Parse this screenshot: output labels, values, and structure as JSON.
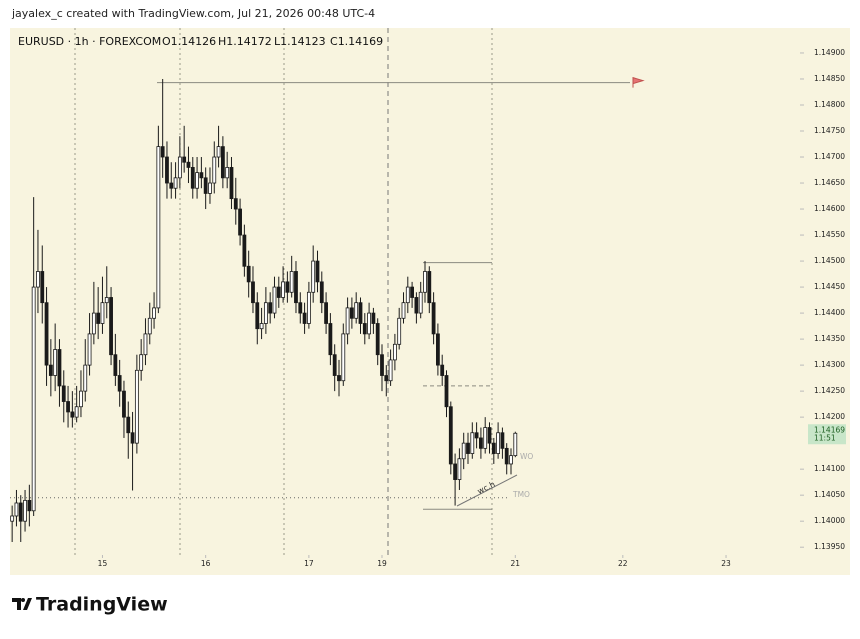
{
  "header": "jayalex_c created with TradingView.com, Jul 21, 2026 00:48 UTC-4",
  "footer": {
    "logo_text": "TradingView"
  },
  "chart_data": {
    "type": "candlestick",
    "symbol": "EURUSD · 1h · FOREXCOM",
    "ohlc_labels": [
      "O",
      "H",
      "L",
      "C"
    ],
    "up_color": "#ffffff",
    "down_color": "#1a1a1a",
    "border_color": "#1a1a1a",
    "xlim": [
      -0.5,
      183.2
    ],
    "xticks": [
      {
        "value": 21,
        "label": "15"
      },
      {
        "value": 45,
        "label": "16"
      },
      {
        "value": 69,
        "label": "17"
      },
      {
        "value": 86,
        "label": "19"
      },
      {
        "value": 117,
        "label": "21"
      },
      {
        "value": 142,
        "label": "22"
      },
      {
        "value": 166,
        "label": "23"
      }
    ],
    "ylim": [
      1.13935,
      1.14948
    ],
    "yticks": [
      {
        "value": 1.149,
        "label": "1.14900"
      },
      {
        "value": 1.1485,
        "label": "1.14850"
      },
      {
        "value": 1.148,
        "label": "1.14800"
      },
      {
        "value": 1.1475,
        "label": "1.14750"
      },
      {
        "value": 1.147,
        "label": "1.14700"
      },
      {
        "value": 1.1465,
        "label": "1.14650"
      },
      {
        "value": 1.146,
        "label": "1.14600"
      },
      {
        "value": 1.1455,
        "label": "1.14550"
      },
      {
        "value": 1.145,
        "label": "1.14500"
      },
      {
        "value": 1.1445,
        "label": "1.14450"
      },
      {
        "value": 1.144,
        "label": "1.14400"
      },
      {
        "value": 1.1435,
        "label": "1.14350"
      },
      {
        "value": 1.143,
        "label": "1.14300"
      },
      {
        "value": 1.1425,
        "label": "1.14250"
      },
      {
        "value": 1.142,
        "label": "1.14200"
      },
      {
        "value": 1.141,
        "label": "1.14100"
      },
      {
        "value": 1.1405,
        "label": "1.14050"
      },
      {
        "value": 1.14,
        "label": "1.14000"
      },
      {
        "value": 1.1395,
        "label": "1.13950"
      }
    ],
    "price_tag_time": "11:51",
    "price_tag_color": "#c8e6c9",
    "hlines": [
      1.14843,
      1.14497,
      1.1426,
      1.14023,
      1.14045
    ],
    "annotations": [
      "wc.h",
      "WO",
      "TMO"
    ],
    "candles": [
      [
        1.14,
        1.1403,
        1.1396,
        1.1401
      ],
      [
        1.1401,
        1.1406,
        1.1399,
        1.14035
      ],
      [
        1.14035,
        1.1405,
        1.1396,
        1.14
      ],
      [
        1.14,
        1.1406,
        1.1398,
        1.1404
      ],
      [
        1.1404,
        1.1407,
        1.1399,
        1.1402
      ],
      [
        1.1402,
        1.14623,
        1.1401,
        1.1445
      ],
      [
        1.1445,
        1.1456,
        1.144,
        1.1448
      ],
      [
        1.1448,
        1.1453,
        1.1438,
        1.1442
      ],
      [
        1.1442,
        1.1445,
        1.1426,
        1.143
      ],
      [
        1.143,
        1.1435,
        1.1424,
        1.1428
      ],
      [
        1.1428,
        1.1438,
        1.1425,
        1.1433
      ],
      [
        1.1433,
        1.1435,
        1.1422,
        1.1426
      ],
      [
        1.1426,
        1.1429,
        1.1419,
        1.1423
      ],
      [
        1.1423,
        1.1426,
        1.1418,
        1.1421
      ],
      [
        1.1421,
        1.1425,
        1.1418,
        1.142
      ],
      [
        1.142,
        1.1426,
        1.1419,
        1.1422
      ],
      [
        1.1422,
        1.1429,
        1.142,
        1.1425
      ],
      [
        1.1425,
        1.1435,
        1.1423,
        1.143
      ],
      [
        1.143,
        1.144,
        1.1428,
        1.1436
      ],
      [
        1.1436,
        1.1446,
        1.1434,
        1.144
      ],
      [
        1.144,
        1.1445,
        1.1435,
        1.1438
      ],
      [
        1.1438,
        1.1447,
        1.1436,
        1.1442
      ],
      [
        1.1442,
        1.1449,
        1.1439,
        1.1443
      ],
      [
        1.1443,
        1.1445,
        1.143,
        1.1432
      ],
      [
        1.1432,
        1.1436,
        1.1426,
        1.1428
      ],
      [
        1.1428,
        1.1431,
        1.1422,
        1.1425
      ],
      [
        1.1425,
        1.1427,
        1.1416,
        1.142
      ],
      [
        1.142,
        1.1423,
        1.1412,
        1.1417
      ],
      [
        1.1417,
        1.1421,
        1.14059,
        1.1415
      ],
      [
        1.1415,
        1.1432,
        1.1413,
        1.1429
      ],
      [
        1.1429,
        1.1435,
        1.1427,
        1.1432
      ],
      [
        1.1432,
        1.1439,
        1.143,
        1.1436
      ],
      [
        1.1436,
        1.1442,
        1.1434,
        1.1439
      ],
      [
        1.1439,
        1.1444,
        1.1437,
        1.1441
      ],
      [
        1.1441,
        1.1476,
        1.144,
        1.1472
      ],
      [
        1.1472,
        1.1485,
        1.1466,
        1.147
      ],
      [
        1.147,
        1.1473,
        1.1462,
        1.1465
      ],
      [
        1.1465,
        1.1469,
        1.1462,
        1.1464
      ],
      [
        1.1464,
        1.1469,
        1.1462,
        1.1466
      ],
      [
        1.1466,
        1.1474,
        1.1464,
        1.147
      ],
      [
        1.147,
        1.1476,
        1.1467,
        1.1469
      ],
      [
        1.1469,
        1.1472,
        1.1465,
        1.1468
      ],
      [
        1.1468,
        1.147,
        1.1462,
        1.1464
      ],
      [
        1.1464,
        1.147,
        1.1462,
        1.1467
      ],
      [
        1.1467,
        1.147,
        1.1464,
        1.1466
      ],
      [
        1.1466,
        1.1468,
        1.146,
        1.1463
      ],
      [
        1.1463,
        1.1468,
        1.1461,
        1.1465
      ],
      [
        1.1465,
        1.1473,
        1.1463,
        1.147
      ],
      [
        1.147,
        1.1476,
        1.1468,
        1.1472
      ],
      [
        1.1472,
        1.1474,
        1.1464,
        1.1466
      ],
      [
        1.1466,
        1.1471,
        1.1464,
        1.1468
      ],
      [
        1.1468,
        1.147,
        1.146,
        1.1462
      ],
      [
        1.1462,
        1.1466,
        1.1457,
        1.146
      ],
      [
        1.146,
        1.1462,
        1.1453,
        1.1455
      ],
      [
        1.1455,
        1.1457,
        1.1447,
        1.1449
      ],
      [
        1.1449,
        1.1452,
        1.1443,
        1.1446
      ],
      [
        1.1446,
        1.1449,
        1.144,
        1.1442
      ],
      [
        1.1442,
        1.1444,
        1.1434,
        1.1437
      ],
      [
        1.1437,
        1.1441,
        1.1435,
        1.1438
      ],
      [
        1.1438,
        1.1445,
        1.1436,
        1.1442
      ],
      [
        1.1442,
        1.1444,
        1.1438,
        1.144
      ],
      [
        1.144,
        1.1447,
        1.1439,
        1.1445
      ],
      [
        1.1445,
        1.1447,
        1.1441,
        1.1443
      ],
      [
        1.1443,
        1.1449,
        1.1442,
        1.1446
      ],
      [
        1.1446,
        1.1448,
        1.1442,
        1.1444
      ],
      [
        1.1444,
        1.1451,
        1.1443,
        1.1448
      ],
      [
        1.1448,
        1.145,
        1.144,
        1.1442
      ],
      [
        1.1442,
        1.1444,
        1.1438,
        1.144
      ],
      [
        1.144,
        1.1442,
        1.1436,
        1.1438
      ],
      [
        1.1438,
        1.1446,
        1.1437,
        1.1444
      ],
      [
        1.1444,
        1.1453,
        1.1442,
        1.145
      ],
      [
        1.145,
        1.1452,
        1.1444,
        1.1446
      ],
      [
        1.1446,
        1.1448,
        1.144,
        1.1442
      ],
      [
        1.1442,
        1.1444,
        1.1436,
        1.1438
      ],
      [
        1.1438,
        1.144,
        1.143,
        1.1432
      ],
      [
        1.1432,
        1.1434,
        1.1425,
        1.1428
      ],
      [
        1.1428,
        1.1431,
        1.1424,
        1.1427
      ],
      [
        1.1427,
        1.1438,
        1.1426,
        1.1436
      ],
      [
        1.1436,
        1.1443,
        1.1434,
        1.1441
      ],
      [
        1.1441,
        1.1443,
        1.1437,
        1.1439
      ],
      [
        1.1439,
        1.1444,
        1.1438,
        1.1442
      ],
      [
        1.1442,
        1.1443,
        1.1436,
        1.1438
      ],
      [
        1.1438,
        1.144,
        1.1434,
        1.1436
      ],
      [
        1.1436,
        1.1442,
        1.1435,
        1.144
      ],
      [
        1.144,
        1.1441,
        1.1436,
        1.1438
      ],
      [
        1.1438,
        1.1439,
        1.143,
        1.1432
      ],
      [
        1.1432,
        1.1434,
        1.1425,
        1.1428
      ],
      [
        1.1428,
        1.143,
        1.1424,
        1.1427
      ],
      [
        1.1427,
        1.1433,
        1.1426,
        1.1431
      ],
      [
        1.1431,
        1.1436,
        1.1429,
        1.1434
      ],
      [
        1.1434,
        1.1441,
        1.1433,
        1.1439
      ],
      [
        1.1439,
        1.1444,
        1.1438,
        1.1442
      ],
      [
        1.1442,
        1.1447,
        1.144,
        1.1445
      ],
      [
        1.1445,
        1.1446,
        1.1441,
        1.1443
      ],
      [
        1.1443,
        1.1444,
        1.1438,
        1.144
      ],
      [
        1.144,
        1.1446,
        1.1439,
        1.1444
      ],
      [
        1.1444,
        1.145,
        1.1442,
        1.1448
      ],
      [
        1.1448,
        1.1449,
        1.144,
        1.1442
      ],
      [
        1.1442,
        1.1444,
        1.1434,
        1.1436
      ],
      [
        1.1436,
        1.1438,
        1.1428,
        1.143
      ],
      [
        1.143,
        1.1432,
        1.1426,
        1.1428
      ],
      [
        1.1428,
        1.1429,
        1.142,
        1.1422
      ],
      [
        1.1422,
        1.1423,
        1.1409,
        1.1411
      ],
      [
        1.1411,
        1.1413,
        1.1403,
        1.1408
      ],
      [
        1.1408,
        1.1414,
        1.1406,
        1.1412
      ],
      [
        1.1412,
        1.1417,
        1.141,
        1.1415
      ],
      [
        1.1415,
        1.1417,
        1.1411,
        1.1413
      ],
      [
        1.1413,
        1.1419,
        1.1412,
        1.1417
      ],
      [
        1.1417,
        1.1419,
        1.1414,
        1.1416
      ],
      [
        1.1416,
        1.1418,
        1.1412,
        1.1414
      ],
      [
        1.1414,
        1.142,
        1.1413,
        1.1418
      ],
      [
        1.1418,
        1.1419,
        1.1413,
        1.1415
      ],
      [
        1.1415,
        1.1416,
        1.1411,
        1.1413
      ],
      [
        1.1413,
        1.1419,
        1.1412,
        1.1417
      ],
      [
        1.1417,
        1.1418,
        1.1412,
        1.1414
      ],
      [
        1.1414,
        1.1415,
        1.1409,
        1.1411
      ],
      [
        1.1411,
        1.1414,
        1.1409,
        1.14126
      ],
      [
        1.14126,
        1.14172,
        1.14123,
        1.14169
      ]
    ]
  }
}
